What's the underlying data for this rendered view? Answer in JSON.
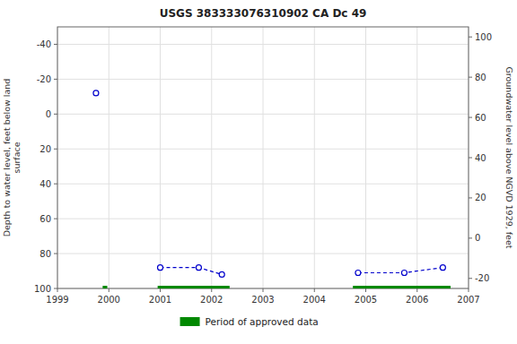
{
  "chart_data": {
    "type": "line",
    "title": "USGS 383333076310902 CA Dc  49",
    "y_label": "Depth to water level, feet below land\nsurface",
    "y2_label": "Groundwater level above NGVD 1929, feet",
    "xlim": [
      1999,
      2007
    ],
    "xticks": [
      1999,
      2000,
      2001,
      2002,
      2003,
      2004,
      2005,
      2006,
      2007
    ],
    "ylim": [
      100,
      -50
    ],
    "yticks": [
      100,
      80,
      60,
      40,
      20,
      0,
      -20,
      -40
    ],
    "y2lim": [
      -25,
      105
    ],
    "y2ticks": [
      -20,
      0,
      20,
      40,
      60,
      80,
      100
    ],
    "grid": true,
    "legend": "bottom",
    "series": [
      {
        "type": "scatter",
        "color": "#0000cc",
        "marker": "circle",
        "x": [
          1999.75
        ],
        "values": [
          -12
        ]
      },
      {
        "type": "line",
        "color": "#0000cc",
        "marker": "circle",
        "line_style": "dashed",
        "x": [
          2001.0,
          2001.75,
          2002.2
        ],
        "values": [
          88,
          88,
          92
        ]
      },
      {
        "type": "line",
        "color": "#0000cc",
        "marker": "circle",
        "line_style": "dashed",
        "x": [
          2004.85,
          2005.75,
          2006.5
        ],
        "values": [
          91,
          91,
          88
        ]
      },
      {
        "name": "Period of approved data",
        "type": "line",
        "color": "#008800",
        "line_style": "solid",
        "x": [
          1999.88,
          1999.97,
          null,
          2000.95,
          2002.35,
          null,
          2004.75,
          2006.65
        ],
        "values": [
          100,
          100,
          null,
          100,
          100,
          null,
          100,
          100
        ]
      }
    ]
  }
}
